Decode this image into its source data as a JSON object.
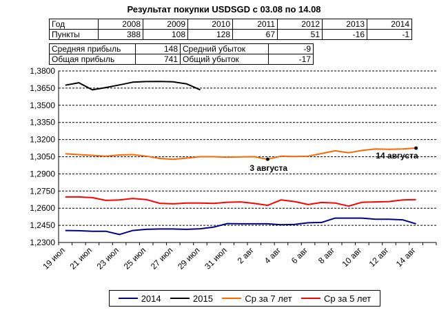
{
  "title": "Результат покупки USDSGD с 03.08 по 14.08",
  "table": {
    "year_label": "Год",
    "years": [
      "2008",
      "2009",
      "2010",
      "2011",
      "2012",
      "2013",
      "2014"
    ],
    "points_label": "Пункты",
    "points": [
      "388",
      "108",
      "128",
      "67",
      "51",
      "-16",
      "-1"
    ],
    "avg_profit_label": "Средняя прибыль",
    "avg_profit": "148",
    "avg_loss_label": "Средний убыток",
    "avg_loss": "-9",
    "total_profit_label": "Общая прибыль",
    "total_profit": "741",
    "total_loss_label": "Общий убыток",
    "total_loss": "-17"
  },
  "chart_data": {
    "type": "line",
    "ylim": [
      1.23,
      1.38
    ],
    "yticks": [
      "1,2300",
      "1,2450",
      "1,2600",
      "1,2750",
      "1,2900",
      "1,3050",
      "1,3200",
      "1,3350",
      "1,3500",
      "1,3650",
      "1,3800"
    ],
    "grid": true,
    "x_count": 28,
    "xticks": [
      {
        "i": 0,
        "label": "19 июл"
      },
      {
        "i": 2,
        "label": "21 июл"
      },
      {
        "i": 4,
        "label": "23 июл"
      },
      {
        "i": 6,
        "label": "25 июл"
      },
      {
        "i": 8,
        "label": "27 июл"
      },
      {
        "i": 10,
        "label": "29 июл"
      },
      {
        "i": 12,
        "label": "31 июл"
      },
      {
        "i": 14,
        "label": "2 авг"
      },
      {
        "i": 16,
        "label": "4 авг"
      },
      {
        "i": 18,
        "label": "6 авг"
      },
      {
        "i": 20,
        "label": "8 авг"
      },
      {
        "i": 22,
        "label": "10 авг"
      },
      {
        "i": 24,
        "label": "12 авг"
      },
      {
        "i": 26,
        "label": "14 авг"
      }
    ],
    "series": [
      {
        "name": "2014",
        "color": "#000080",
        "values": [
          1.2405,
          1.2403,
          1.2398,
          1.2398,
          1.237,
          1.2405,
          1.2415,
          1.2418,
          1.2418,
          1.2415,
          1.242,
          1.2435,
          1.2465,
          1.2463,
          1.2463,
          1.2463,
          1.2455,
          1.2458,
          1.2472,
          1.2475,
          1.2513,
          1.2513,
          1.2513,
          1.2503,
          1.2503,
          1.2498,
          1.2463
        ]
      },
      {
        "name": "2015",
        "color": "#000000",
        "values": [
          1.3675,
          1.3697,
          1.3635,
          1.3655,
          1.3678,
          1.3702,
          1.3707,
          1.3708,
          1.3705,
          1.3687,
          1.3635
        ]
      },
      {
        "name": "Ср за 7 лет",
        "color": "#ff6600",
        "values": [
          1.3075,
          1.3068,
          1.3062,
          1.3055,
          1.3065,
          1.3068,
          1.3055,
          1.3035,
          1.3028,
          1.3038,
          1.305,
          1.305,
          1.3045,
          1.3048,
          1.305,
          1.3028,
          1.3055,
          1.3052,
          1.3055,
          1.3078,
          1.3102,
          1.3085,
          1.3105,
          1.3118,
          1.3115,
          1.3118,
          1.3125
        ]
      },
      {
        "name": "Ср за 5 лет",
        "color": "#ff0000",
        "values": [
          1.2698,
          1.2698,
          1.2692,
          1.2668,
          1.2672,
          1.2685,
          1.2675,
          1.2643,
          1.2638,
          1.2645,
          1.2645,
          1.2642,
          1.2652,
          1.2655,
          1.2642,
          1.2625,
          1.2672,
          1.2658,
          1.2632,
          1.265,
          1.2645,
          1.2618,
          1.2652,
          1.2655,
          1.2658,
          1.2672,
          1.2675
        ]
      }
    ],
    "markers": [
      {
        "series": 2,
        "i": 15,
        "label": "3 августа"
      },
      {
        "series": 2,
        "i": 26,
        "label": "14 августа"
      }
    ]
  }
}
